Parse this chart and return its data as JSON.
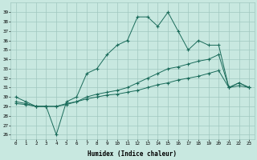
{
  "xlabel": "Humidex (Indice chaleur)",
  "bg_color": "#c8e8e0",
  "grid_color": "#a0c8c0",
  "line_color": "#1a6b5a",
  "xlim": [
    -0.5,
    23.5
  ],
  "ylim": [
    25.5,
    40.0
  ],
  "yticks": [
    26,
    27,
    28,
    29,
    30,
    31,
    32,
    33,
    34,
    35,
    36,
    37,
    38,
    39
  ],
  "xticks": [
    0,
    1,
    2,
    3,
    4,
    5,
    6,
    7,
    8,
    9,
    10,
    11,
    12,
    13,
    14,
    15,
    16,
    17,
    18,
    19,
    20,
    21,
    22,
    23
  ],
  "series1": [
    30.0,
    29.5,
    29.0,
    29.0,
    26.0,
    29.5,
    30.0,
    32.5,
    33.0,
    34.5,
    35.5,
    36.0,
    38.5,
    38.5,
    37.5,
    39.0,
    37.0,
    35.0,
    36.0,
    35.5,
    35.5,
    31.0,
    31.5,
    31.0
  ],
  "series2": [
    29.5,
    29.3,
    29.0,
    29.0,
    29.0,
    29.3,
    29.5,
    30.0,
    30.3,
    30.5,
    30.7,
    31.0,
    31.5,
    32.0,
    32.5,
    33.0,
    33.2,
    33.5,
    33.8,
    34.0,
    34.5,
    31.0,
    31.5,
    31.0
  ],
  "series3": [
    29.3,
    29.2,
    29.0,
    29.0,
    29.0,
    29.2,
    29.5,
    29.8,
    30.0,
    30.2,
    30.3,
    30.5,
    30.7,
    31.0,
    31.3,
    31.5,
    31.8,
    32.0,
    32.2,
    32.5,
    32.8,
    31.0,
    31.2,
    31.0
  ]
}
